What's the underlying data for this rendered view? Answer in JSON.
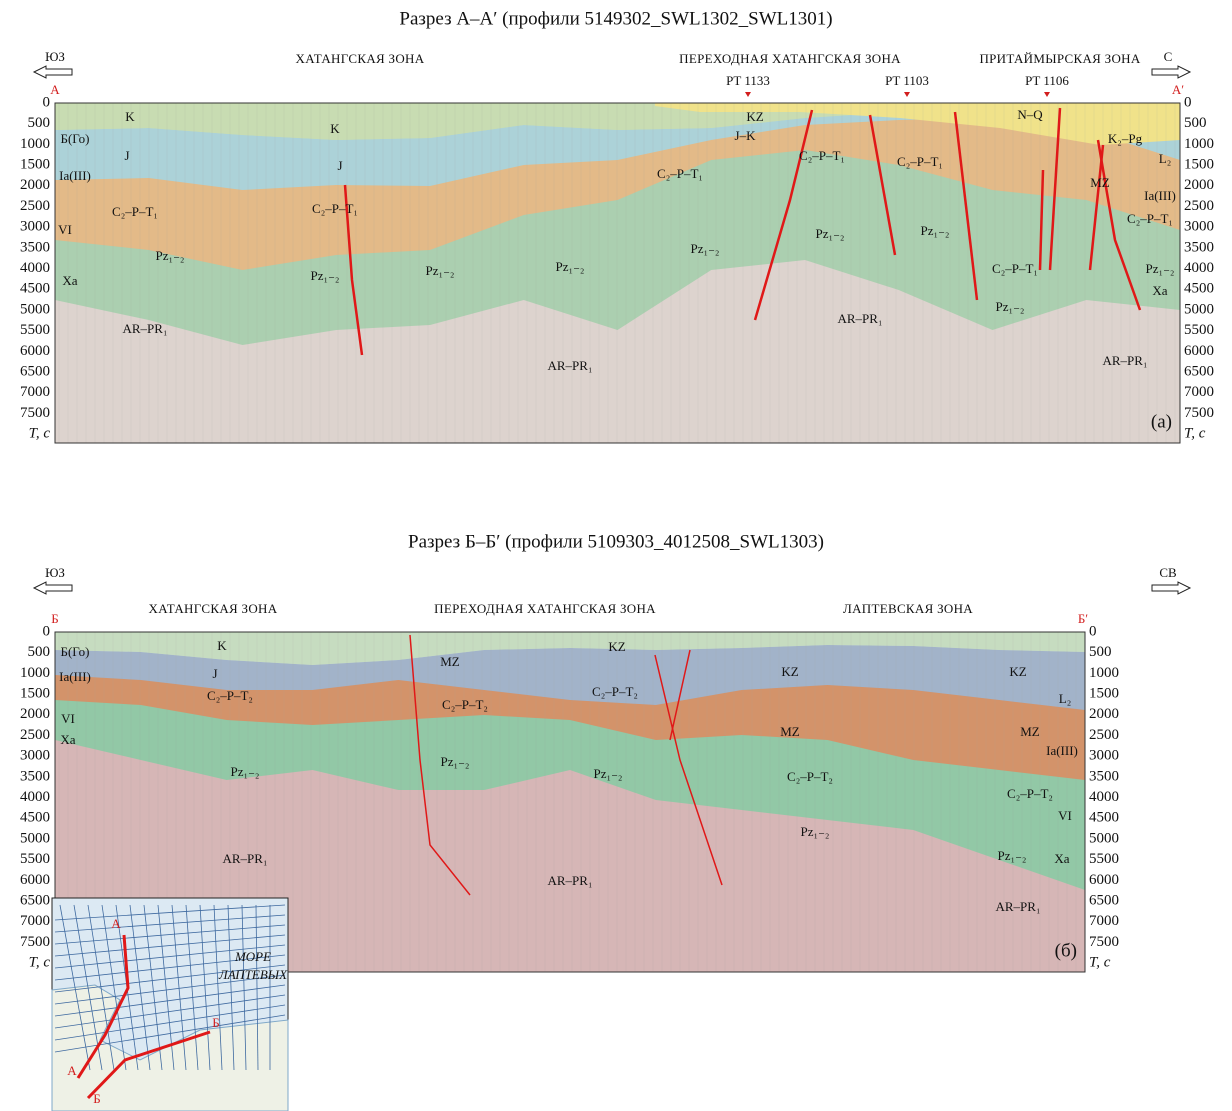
{
  "panels": [
    {
      "title": "Разрез А–А′ (профили 5149302_SWL1302_SWL1301)",
      "direction_left": "ЮЗ",
      "direction_right": "С",
      "end_left": "А",
      "end_right": "А′",
      "zones": [
        "ХАТАНГСКАЯ ЗОНА",
        "ПЕРЕХОДНАЯ ХАТАНГСКАЯ ЗОНА",
        "ПРИТАЙМЫРСКАЯ ЗОНА"
      ],
      "wells": [
        "PT 1133",
        "PT 1103",
        "PT 1106"
      ],
      "depth_ticks": [
        "0",
        "500",
        "1000",
        "1500",
        "2000",
        "2500",
        "3000",
        "3500",
        "4000",
        "4500",
        "5000",
        "5500",
        "6000",
        "6500",
        "7000",
        "7500"
      ],
      "axis_label": "T, с",
      "panel_label": "(а)",
      "units": [
        "K",
        "Б(Го)",
        "J",
        "Ia(III)",
        "C₂–P–T₁",
        "VI",
        "Pz₁₋₂",
        "Xa",
        "AR–PR₁",
        "K",
        "J",
        "C₂–P–T₁",
        "Pz₁₋₂",
        "Pz₁₋₂",
        "Pz₁₋₂",
        "Pz₁₋₂",
        "AR–PR₁",
        "KZ",
        "J–K",
        "C₂–P–T₁",
        "C₂–P–T₁",
        "C₂–P–T₁",
        "Pz₁₋₂",
        "Pz₁₋₂",
        "AR–PR₁",
        "N–Q",
        "K₂–Pg",
        "L₂",
        "MZ",
        "Ia(III)",
        "C₂–P–T₁",
        "C₂–P–T₁",
        "Pz₁₋₂",
        "Xa",
        "Pz₁₋₂",
        "AR–PR₁"
      ]
    },
    {
      "title": "Разрез Б–Б′ (профили 5109303_4012508_SWL1303)",
      "direction_left": "ЮЗ",
      "direction_right": "СВ",
      "end_left": "Б",
      "end_right": "Б′",
      "zones": [
        "ХАТАНГСКАЯ ЗОНА",
        "ПЕРЕХОДНАЯ ХАТАНГСКАЯ ЗОНА",
        "ЛАПТЕВСКАЯ ЗОНА"
      ],
      "wells": [],
      "depth_ticks": [
        "0",
        "500",
        "1000",
        "1500",
        "2000",
        "2500",
        "3000",
        "3500",
        "4000",
        "4500",
        "5000",
        "5500",
        "6000",
        "6500",
        "7000",
        "7500"
      ],
      "axis_label": "T, с",
      "panel_label": "(б)",
      "units": [
        "K",
        "Б(Го)",
        "J",
        "Ia(III)",
        "C₂–P–T₂",
        "VI",
        "Xa",
        "Pz₁₋₂",
        "AR–PR₁",
        "MZ",
        "C₂–P–T₂",
        "Pz₁₋₂",
        "C₂–P–T₂",
        "Pz₁₋₂",
        "KZ",
        "KZ",
        "MZ",
        "C₂–P–T₂",
        "Pz₁₋₂",
        "AR–PR₁",
        "KZ",
        "L₂",
        "MZ",
        "Ia(III)",
        "C₂–P–T₂",
        "VI",
        "Pz₁₋₂",
        "Xa",
        "AR–PR₁"
      ]
    }
  ],
  "inset": {
    "sea_name": [
      "МОРЕ",
      "ЛАПТЕВЫХ"
    ],
    "labels": [
      "А",
      "Б",
      "А",
      "Б"
    ]
  }
}
